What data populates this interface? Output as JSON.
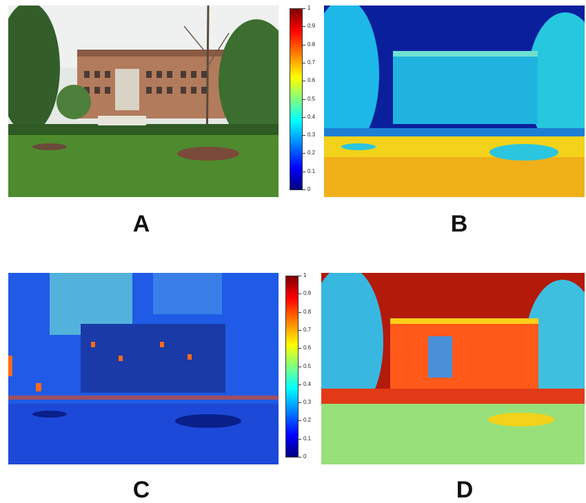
{
  "panels": [
    {
      "id": "A",
      "label": "A"
    },
    {
      "id": "B",
      "label": "B"
    },
    {
      "id": "C",
      "label": "C"
    },
    {
      "id": "D",
      "label": "D"
    }
  ],
  "colorbar": {
    "ticks": [
      "1",
      "0.9",
      "0.8",
      "0.7",
      "0.6",
      "0.5",
      "0.4",
      "0.3",
      "0.2",
      "0.1",
      "0"
    ],
    "gradient": [
      "#800000",
      "#ff0000",
      "#ff8000",
      "#ffff00",
      "#80ff80",
      "#00ffff",
      "#0080ff",
      "#0000ff",
      "#000080"
    ]
  },
  "colors": {
    "sky_photo": "#e6ebe8",
    "building": "#b07c5f",
    "grass": "#4f8a2f",
    "tree": "#3c6b2e"
  }
}
